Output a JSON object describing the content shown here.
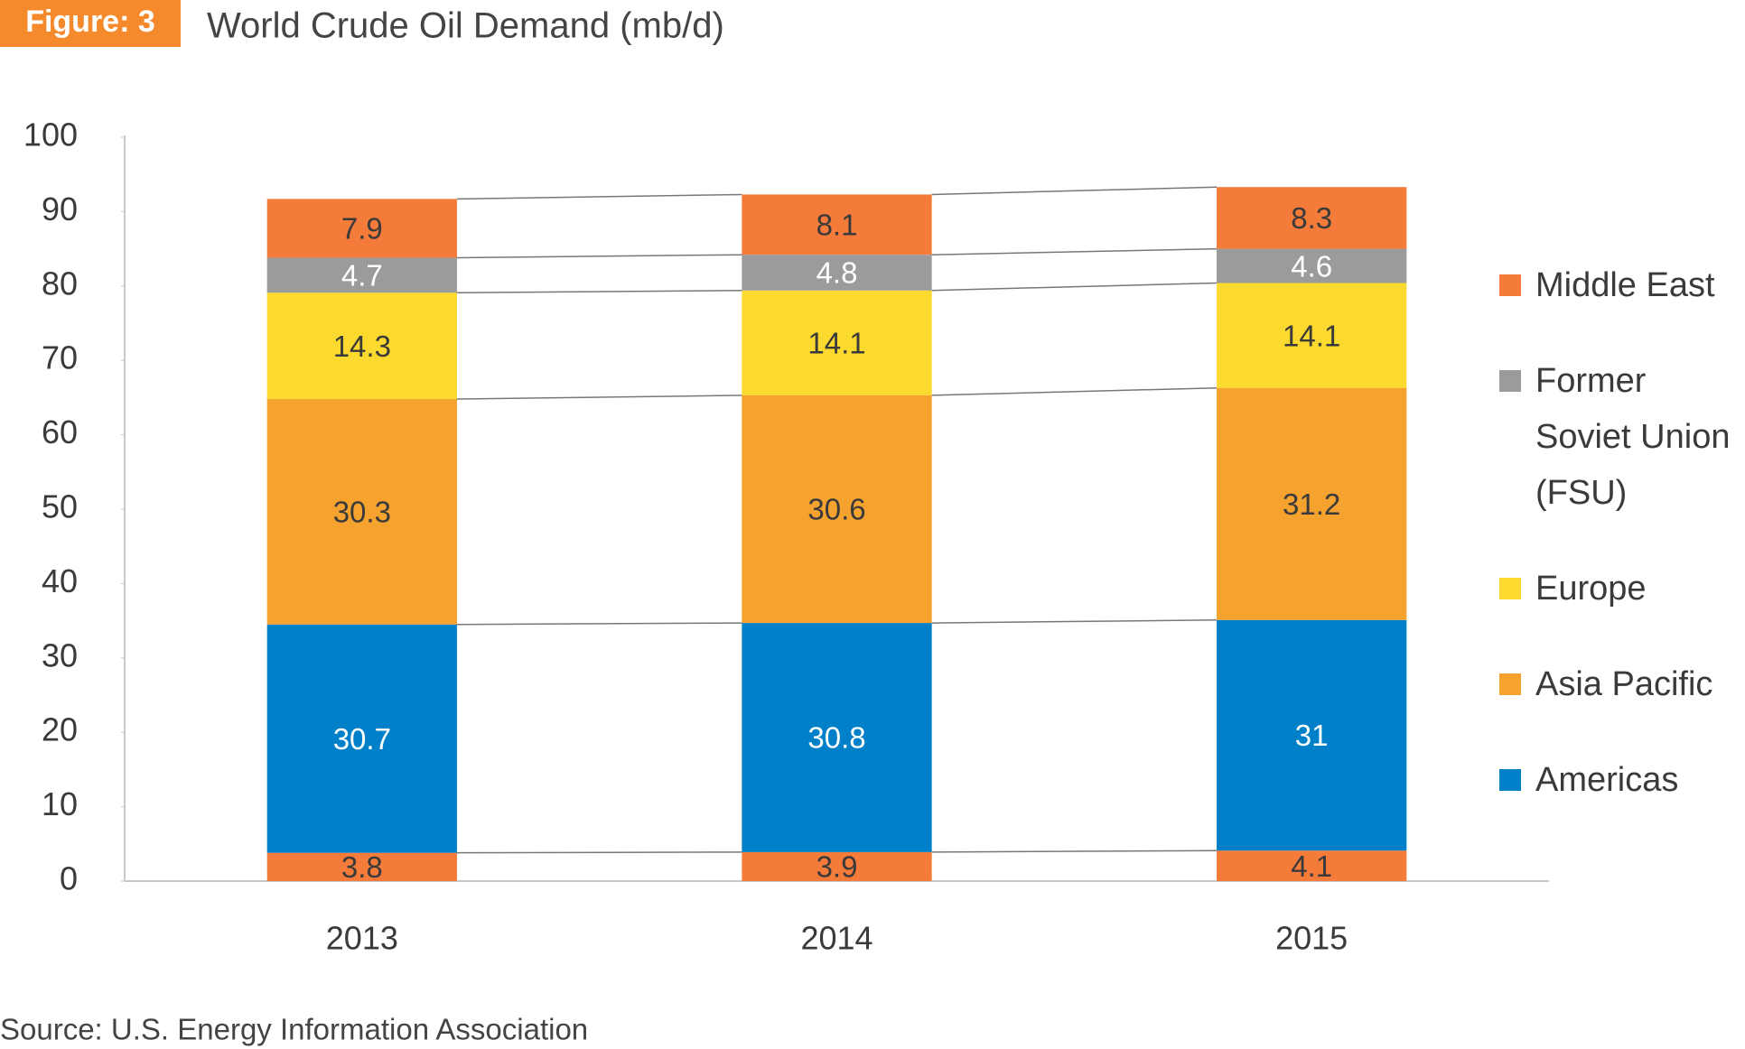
{
  "chart_data": {
    "type": "stacked_bar",
    "figure_label": "Figure: 3",
    "title": "World Crude Oil Demand (mb/d)",
    "source": "Source: U.S. Energy Information Association",
    "categories": [
      "2013",
      "2014",
      "2015"
    ],
    "series": [
      {
        "color": "#f47b3a",
        "label_color": "#3a3a3a",
        "values": [
          3.8,
          3.9,
          4.1
        ]
      },
      {
        "name": "Americas",
        "color": "#0080c8",
        "label_color": "#ffffff",
        "values": [
          30.7,
          30.8,
          31
        ]
      },
      {
        "name": "Asia Pacific",
        "color": "#f6a22f",
        "label_color": "#3a3a3a",
        "values": [
          30.3,
          30.6,
          31.2
        ]
      },
      {
        "name": "Europe",
        "color": "#fcd92e",
        "label_color": "#3a3a3a",
        "values": [
          14.3,
          14.1,
          14.1
        ]
      },
      {
        "name": "Former Soviet Union (FSU)",
        "color": "#9b9b9b",
        "label_color": "#ffffff",
        "values": [
          4.7,
          4.8,
          4.6
        ]
      },
      {
        "name": "Middle East",
        "color": "#f47b3a",
        "label_color": "#3a3a3a",
        "values": [
          7.9,
          8.1,
          8.3
        ]
      }
    ],
    "ylim": [
      0,
      100
    ],
    "yticks": [
      0,
      10,
      20,
      30,
      40,
      50,
      60,
      70,
      80,
      90,
      100
    ],
    "badge_color": "#f58a2c"
  }
}
